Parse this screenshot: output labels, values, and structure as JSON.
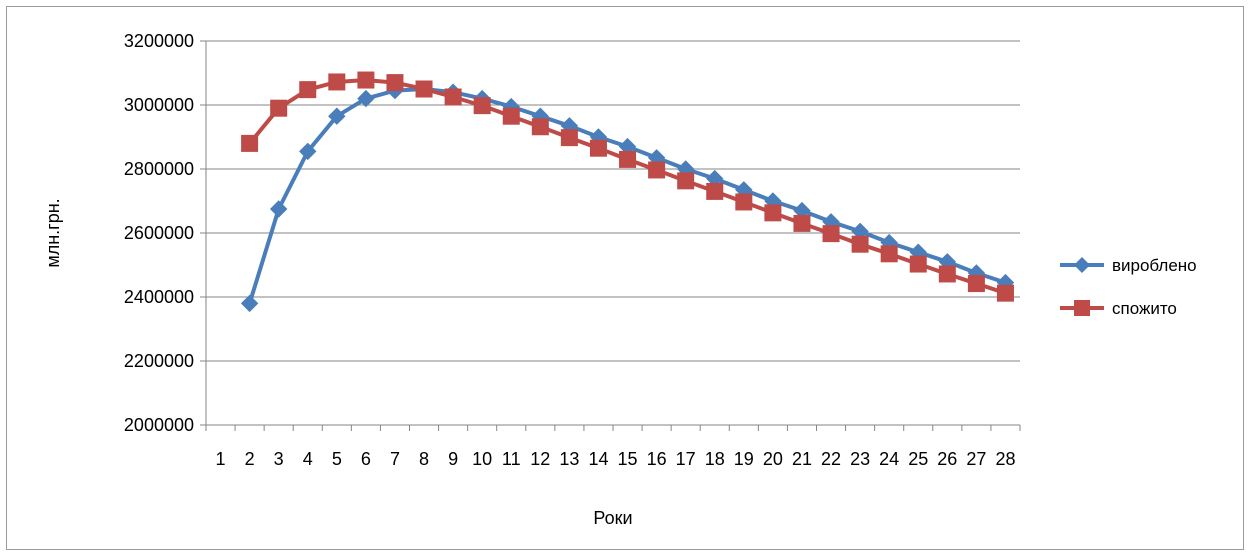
{
  "chart_data": {
    "type": "line",
    "xlabel": "Роки",
    "ylabel": "млн.грн.",
    "ylim": [
      2000000,
      3200000
    ],
    "yticks": [
      2000000,
      2200000,
      2400000,
      2600000,
      2800000,
      3000000,
      3200000
    ],
    "categories": [
      "1",
      "2",
      "3",
      "4",
      "5",
      "6",
      "7",
      "8",
      "9",
      "10",
      "11",
      "12",
      "13",
      "14",
      "15",
      "16",
      "17",
      "18",
      "19",
      "20",
      "21",
      "22",
      "23",
      "24",
      "25",
      "26",
      "27",
      "28"
    ],
    "grid": true,
    "legend": "right",
    "series": [
      {
        "name": "вироблено",
        "color": "#4a7ebb",
        "marker": "diamond",
        "values": [
          null,
          2380000,
          2675000,
          2855000,
          2965000,
          3020000,
          3045000,
          3050000,
          3040000,
          3020000,
          2995000,
          2965000,
          2935000,
          2900000,
          2870000,
          2835000,
          2800000,
          2770000,
          2735000,
          2700000,
          2670000,
          2635000,
          2605000,
          2570000,
          2540000,
          2510000,
          2475000,
          2445000
        ]
      },
      {
        "name": "спожито",
        "color": "#be4b48",
        "marker": "square",
        "values": [
          null,
          2880000,
          2990000,
          3048000,
          3072000,
          3078000,
          3070000,
          3050000,
          3025000,
          2998000,
          2965000,
          2932000,
          2898000,
          2865000,
          2830000,
          2797000,
          2763000,
          2730000,
          2697000,
          2663000,
          2630000,
          2598000,
          2565000,
          2535000,
          2503000,
          2472000,
          2442000,
          2412000
        ]
      }
    ]
  }
}
